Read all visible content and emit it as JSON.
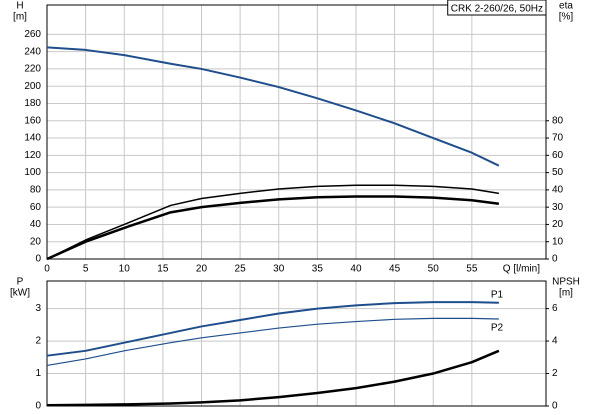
{
  "chart_data": [
    {
      "type": "line",
      "title": "CRK 2-260/26, 50Hz",
      "y_label_top": "H",
      "y_unit": "[m]",
      "y2_label_top": "eta",
      "y2_unit": "[%]",
      "x_label": "Q [l/min]",
      "x": [
        0,
        5,
        10,
        16,
        20,
        25,
        30,
        35,
        40,
        45,
        50,
        55,
        58.5
      ],
      "xlim": [
        0,
        64.6
      ],
      "xticks": [
        0,
        5,
        10,
        15,
        20,
        25,
        30,
        35,
        40,
        45,
        50,
        55
      ],
      "ylim": [
        0,
        294
      ],
      "yticks": [
        0,
        20,
        40,
        60,
        80,
        100,
        120,
        140,
        160,
        180,
        200,
        220,
        240,
        260
      ],
      "y2lim": [
        0,
        147
      ],
      "y2ticks": [
        0,
        10,
        20,
        30,
        40,
        50,
        60,
        70,
        80
      ],
      "grid": true,
      "xtick_labels": true,
      "labels_at_end": false,
      "series": [
        {
          "name": "H",
          "color": "#1f4e8c",
          "line_width": 2,
          "values": [
            245,
            242,
            236,
            226,
            220,
            210,
            199,
            186,
            172,
            157,
            140,
            123,
            108
          ]
        },
        {
          "name": "eta",
          "color": "#000000",
          "line_width": 1.5,
          "axis": "y2",
          "values": [
            0,
            11,
            20,
            31,
            35,
            38,
            40.5,
            42,
            42.7,
            42.7,
            42,
            40.5,
            38
          ]
        },
        {
          "name": "eta",
          "color": "#000000",
          "line_width": 2.5,
          "axis": "y2",
          "values": [
            0,
            10,
            18,
            27,
            30,
            32.5,
            34.5,
            35.7,
            36.2,
            36.2,
            35.5,
            34,
            32
          ]
        }
      ]
    },
    {
      "type": "line",
      "y_label_top": "P",
      "y_unit": "[kW]",
      "y2_label_top": "NPSH",
      "y2_unit": "[m]",
      "x": [
        0,
        5,
        10,
        16,
        20,
        25,
        30,
        35,
        40,
        45,
        50,
        55,
        58.5
      ],
      "xlim": [
        0,
        64.6
      ],
      "xticks": [
        0,
        5,
        10,
        15,
        20,
        25,
        30,
        35,
        40,
        45,
        50,
        55
      ],
      "ylim": [
        0,
        3.85
      ],
      "yticks": [
        0,
        1,
        2,
        3
      ],
      "y2lim": [
        0,
        7.7
      ],
      "y2ticks": [
        0,
        2,
        4,
        6
      ],
      "grid": true,
      "xtick_labels": false,
      "labels_at_end": true,
      "series": [
        {
          "name": "P1",
          "color": "#1f4e8c",
          "line_width": 2,
          "values": [
            1.55,
            1.7,
            1.95,
            2.25,
            2.45,
            2.65,
            2.85,
            3.0,
            3.1,
            3.17,
            3.2,
            3.2,
            3.18
          ]
        },
        {
          "name": "P2",
          "color": "#1f4e8c",
          "line_width": 1.2,
          "values": [
            1.25,
            1.45,
            1.7,
            1.95,
            2.1,
            2.25,
            2.4,
            2.52,
            2.6,
            2.67,
            2.7,
            2.7,
            2.68
          ]
        },
        {
          "name": "NPSH",
          "color": "#000000",
          "line_width": 2.5,
          "axis": "y2",
          "labelless": true,
          "values": [
            0.05,
            0.07,
            0.1,
            0.15,
            0.22,
            0.35,
            0.55,
            0.8,
            1.1,
            1.5,
            2.0,
            2.7,
            3.4
          ]
        }
      ]
    }
  ]
}
